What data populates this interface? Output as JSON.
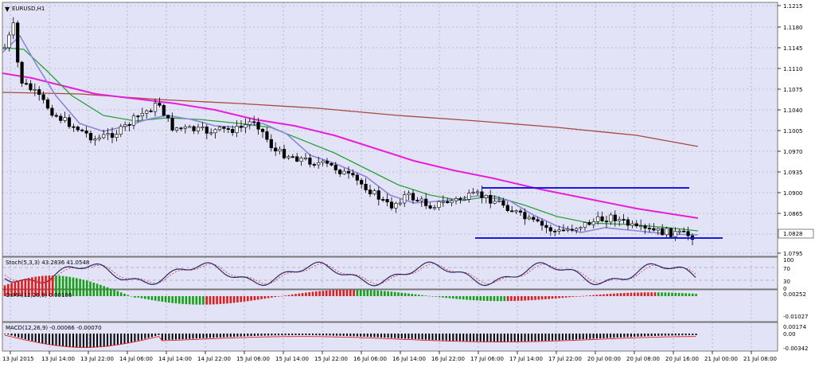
{
  "window": {
    "symbol_label": "EURUSD,H1",
    "menu_icon": "triangle-down-icon"
  },
  "price_axis": {
    "ticks": [
      "1.1215",
      "1.1180",
      "1.1145",
      "1.1110",
      "1.1075",
      "1.1040",
      "1.1005",
      "1.0970",
      "1.0935",
      "1.0900",
      "1.0865",
      "1.0828",
      "1.0795"
    ],
    "current_price": "1.0828"
  },
  "time_axis": {
    "labels": [
      "13 Jul 2015",
      "13 Jul 14:00",
      "13 Jul 22:00",
      "14 Jul 06:00",
      "14 Jul 14:00",
      "14 Jul 22:00",
      "15 Jul 06:00",
      "15 Jul 14:00",
      "15 Jul 22:00",
      "16 Jul 06:00",
      "16 Jul 14:00",
      "16 Jul 22:00",
      "17 Jul 06:00",
      "17 Jul 14:00",
      "17 Jul 22:00",
      "20 Jul 00:00",
      "20 Jul 08:00",
      "20 Jul 16:00",
      "21 Jul 00:00",
      "21 Jul 08:00"
    ]
  },
  "indicators": {
    "stoch": {
      "label": "Stoch(5,3,3) 43.2836 41.0548",
      "levels": [
        "100",
        "70",
        "30",
        "0"
      ]
    },
    "osma": {
      "label": "OsMA(12,26,9) 0.00106",
      "ticks": [
        "0.00252",
        "-0.01027"
      ]
    },
    "macd": {
      "label": "MACD(12,26,9) -0.00066 -0.00070",
      "ticks": [
        "0.00174",
        "0.00",
        "-0.00342"
      ]
    }
  },
  "colors": {
    "background": "#e3e3f7",
    "grid": "#9c9cb4",
    "bull_candle": "#ffffff",
    "bear_candle": "#000000",
    "ma_fast": "#8a86d8",
    "ma_mid": "#27a33a",
    "ma_slow": "#e81fd9",
    "ma_long": "#a54a40",
    "support_line": "#1a1ad8",
    "stoch_main": "#26266b",
    "stoch_signal": "#d23030",
    "osma_up": "#15a015",
    "osma_down": "#e01d1d",
    "macd_hist": "#000000",
    "macd_signal": "#e02020",
    "price_box": "#ffffff"
  }
}
